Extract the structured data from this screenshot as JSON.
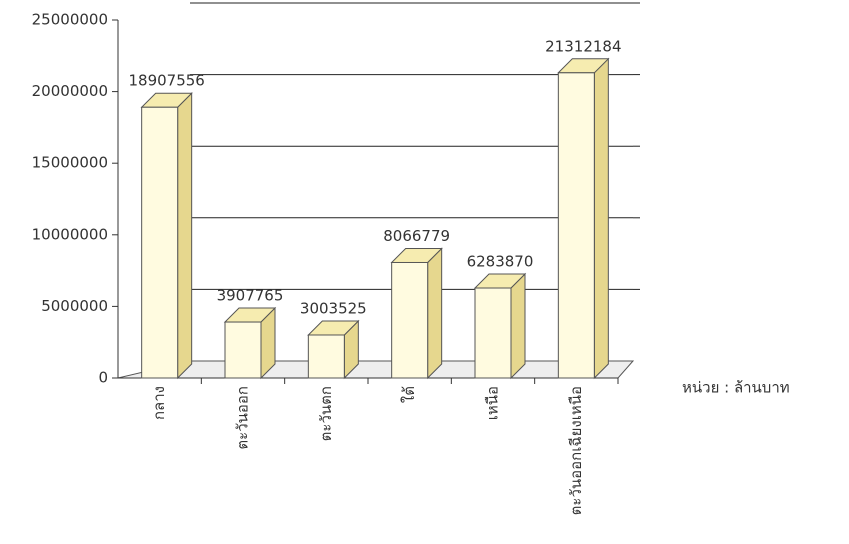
{
  "chart_data": {
    "type": "bar3d",
    "categories": [
      "กลาง",
      "ตะวันออก",
      "ตะวันตก",
      "ใต้",
      "เหนือ",
      "ตะวันออกเฉียงเหนือ"
    ],
    "values": [
      18907556,
      3907765,
      3003525,
      8066779,
      6283870,
      21312184
    ],
    "color": "#fffbe0",
    "ylim": [
      0,
      25000000
    ],
    "yticks": [
      0,
      5000000,
      10000000,
      15000000,
      20000000,
      25000000
    ],
    "grid": true,
    "unit_note": "หน่วย : ล้านบาท"
  }
}
